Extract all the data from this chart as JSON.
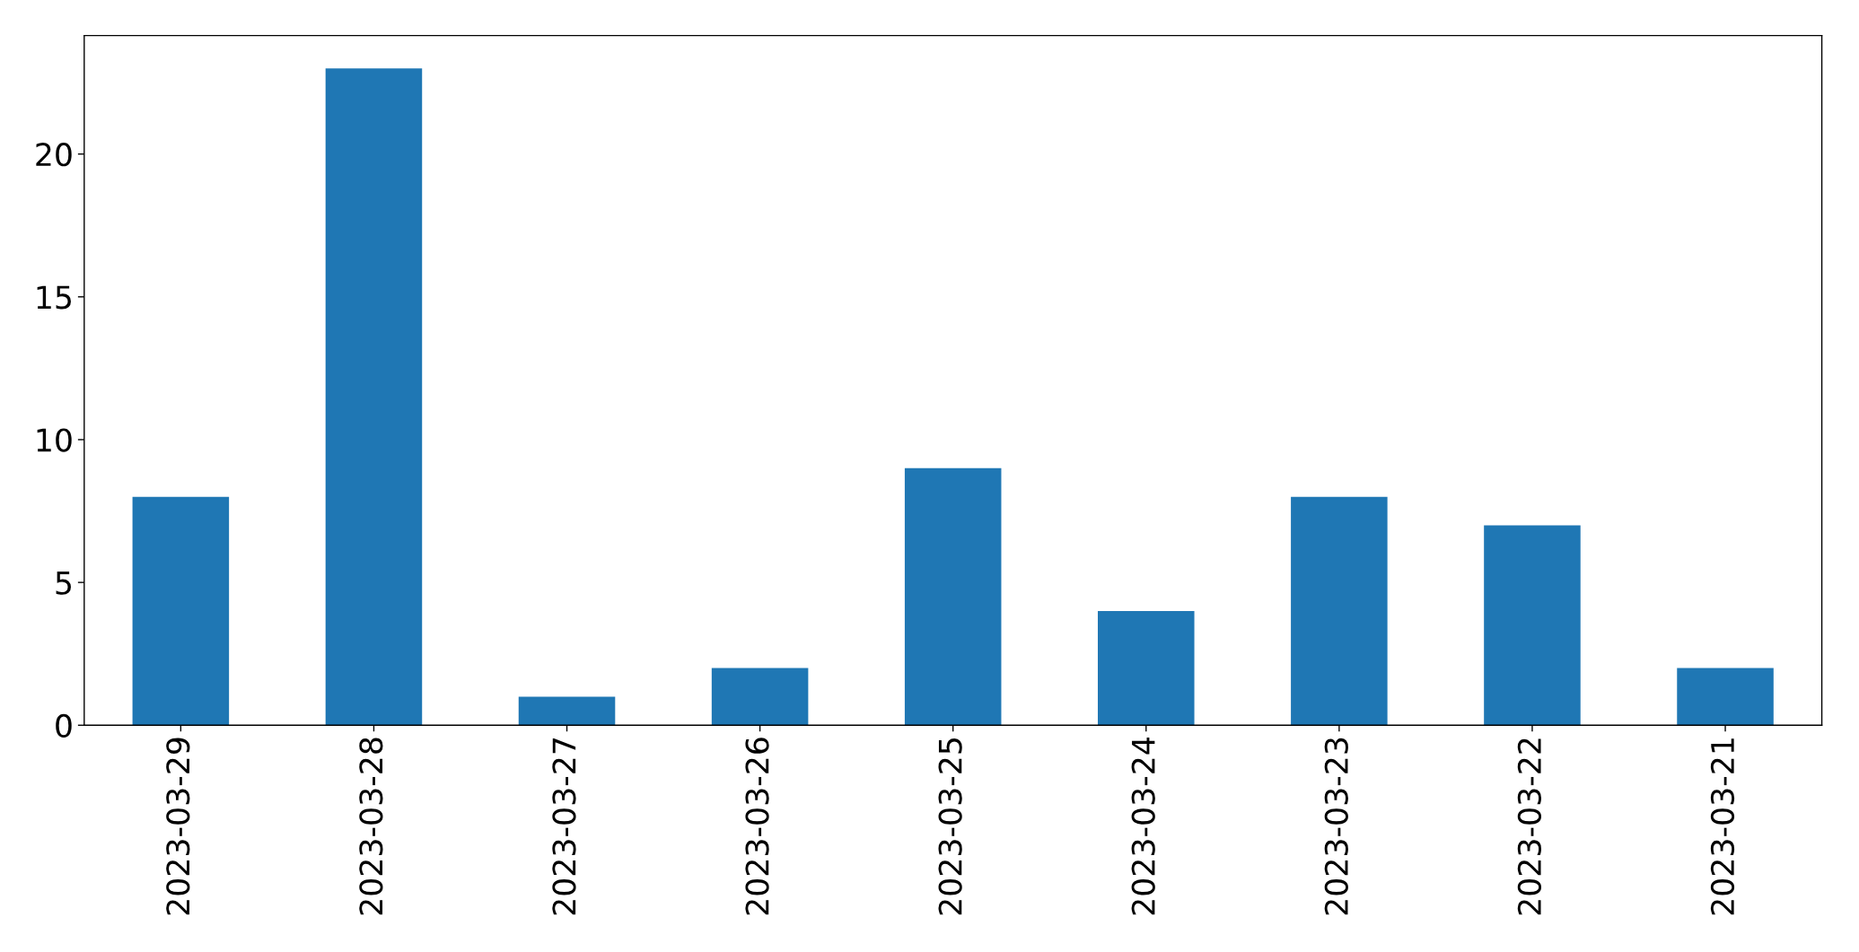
{
  "chart_data": {
    "type": "bar",
    "categories": [
      "2023-03-29",
      "2023-03-28",
      "2023-03-27",
      "2023-03-26",
      "2023-03-25",
      "2023-03-24",
      "2023-03-23",
      "2023-03-22",
      "2023-03-21"
    ],
    "values": [
      8,
      23,
      1,
      2,
      9,
      4,
      8,
      7,
      2
    ],
    "color": "#1f77b4",
    "ylim": [
      0,
      24.15
    ],
    "yticks": [
      0,
      5,
      10,
      15,
      20
    ],
    "grid": false
  }
}
